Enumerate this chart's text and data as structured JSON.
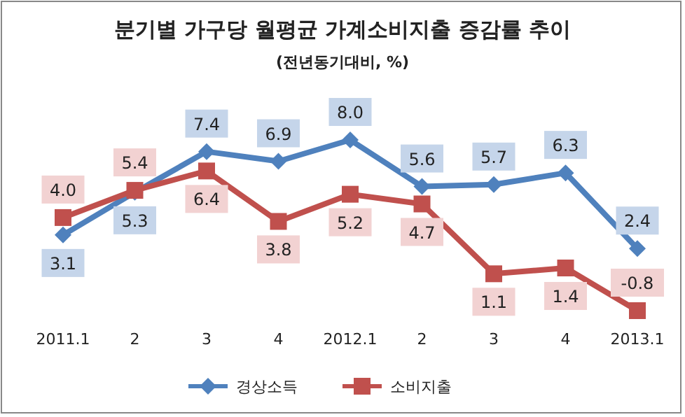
{
  "chart_data": {
    "type": "line",
    "title": "분기별 가구당 월평균 가계소비지출 증감률 추이",
    "subtitle": "(전년동기대비, %)",
    "categories": [
      "2011.1",
      "2",
      "3",
      "4",
      "2012.1",
      "2",
      "3",
      "4",
      "2013.1"
    ],
    "series": [
      {
        "name": "경상소득",
        "color": "#4f81bd",
        "marker": "diamond",
        "values": [
          3.1,
          5.3,
          7.4,
          6.9,
          8.0,
          5.6,
          5.7,
          6.3,
          2.4
        ],
        "value_labels": [
          "3.1",
          "5.3",
          "7.4",
          "6.9",
          "8.0",
          "5.6",
          "5.7",
          "6.3",
          "2.4"
        ]
      },
      {
        "name": "소비지출",
        "color": "#c0504d",
        "marker": "square",
        "values": [
          4.0,
          5.4,
          6.4,
          3.8,
          5.2,
          4.7,
          1.1,
          1.4,
          -0.8
        ],
        "value_labels": [
          "4.0",
          "5.4",
          "6.4",
          "3.8",
          "5.2",
          "4.7",
          "1.1",
          "1.4",
          "-0.8"
        ]
      }
    ],
    "legend": "bottom",
    "grid": false
  }
}
